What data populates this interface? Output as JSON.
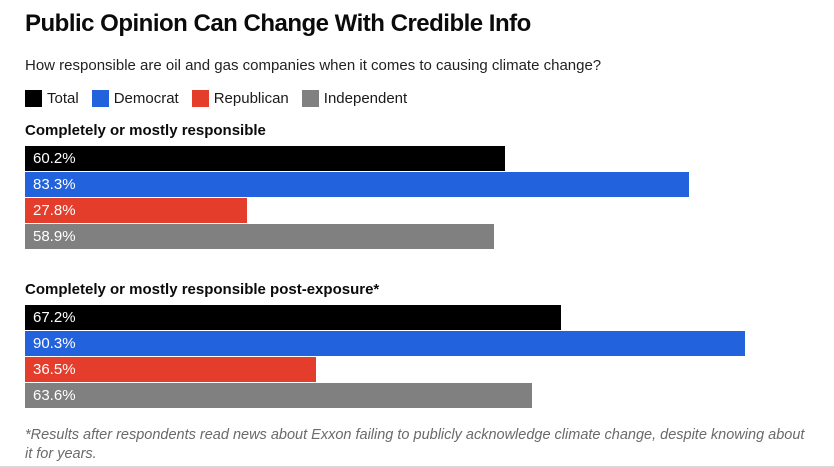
{
  "header": {
    "title": "Public Opinion Can Change With Credible Info",
    "subtitle": "How responsible are oil and gas companies when it comes to causing climate change?"
  },
  "colors": {
    "total": "#000000",
    "democrat": "#2262dc",
    "republican": "#e43d2c",
    "independent": "#808080"
  },
  "legend": {
    "items": [
      {
        "label": "Total",
        "color": "#000000"
      },
      {
        "label": "Democrat",
        "color": "#2262dc"
      },
      {
        "label": "Republican",
        "color": "#e43d2c"
      },
      {
        "label": "Independent",
        "color": "#808080"
      }
    ]
  },
  "chart_data": {
    "type": "bar",
    "orientation": "horizontal",
    "unit": "percent",
    "xlim": [
      0,
      100
    ],
    "grid": false,
    "legend_position": "top",
    "series_names": [
      "Total",
      "Democrat",
      "Republican",
      "Independent"
    ],
    "groups": [
      {
        "label": "Completely or mostly responsible",
        "bars": [
          {
            "name": "Total",
            "value": 60.2,
            "display": "60.2%",
            "color": "#000000"
          },
          {
            "name": "Democrat",
            "value": 83.3,
            "display": "83.3%",
            "color": "#2262dc"
          },
          {
            "name": "Republican",
            "value": 27.8,
            "display": "27.8%",
            "color": "#e43d2c"
          },
          {
            "name": "Independent",
            "value": 58.9,
            "display": "58.9%",
            "color": "#808080"
          }
        ]
      },
      {
        "label": "Completely or mostly responsible post-exposure*",
        "bars": [
          {
            "name": "Total",
            "value": 67.2,
            "display": "67.2%",
            "color": "#000000"
          },
          {
            "name": "Democrat",
            "value": 90.3,
            "display": "90.3%",
            "color": "#2262dc"
          },
          {
            "name": "Republican",
            "value": 36.5,
            "display": "36.5%",
            "color": "#e43d2c"
          },
          {
            "name": "Independent",
            "value": 63.6,
            "display": "63.6%",
            "color": "#808080"
          }
        ]
      }
    ]
  },
  "footnote": {
    "line1": "*Results after respondents read news about Exxon failing to publicly acknowledge climate change, despite knowing about",
    "line2": "it for years."
  }
}
